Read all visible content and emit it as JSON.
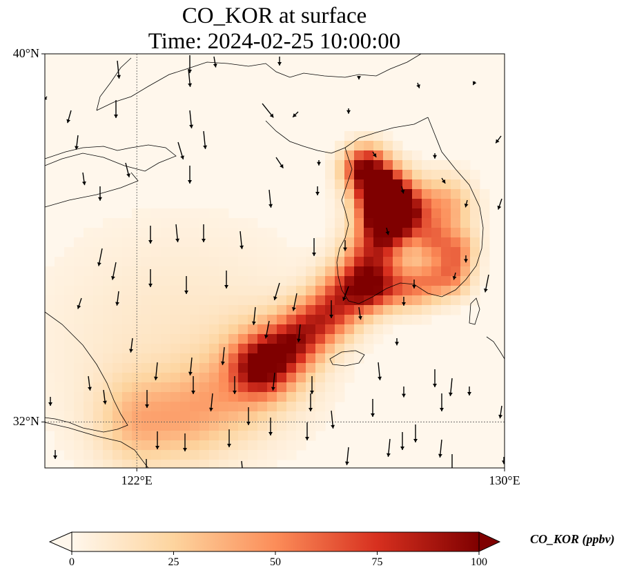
{
  "figure": {
    "title_line1": "CO_KOR at surface",
    "title_line2": "Time: 2024-02-25 10:00:00"
  },
  "map": {
    "lon_range": [
      120,
      130
    ],
    "lat_range": [
      31,
      40
    ],
    "lat_ticks": [
      {
        "value": 40,
        "label": "40°N"
      },
      {
        "value": 32,
        "label": "32°N"
      }
    ],
    "lon_ticks": [
      {
        "value": 122,
        "label": "122°E"
      },
      {
        "value": 130,
        "label": "130°E"
      }
    ],
    "gridlines": [
      {
        "type": "lon",
        "value": 122
      },
      {
        "type": "lat",
        "value": 32
      }
    ],
    "colormap": "OrRd",
    "coastline_color": "#000000"
  },
  "colorbar": {
    "label": "CO_KOR (ppbv)",
    "min": 0,
    "max": 100,
    "ticks": [
      {
        "value": 0,
        "label": "0"
      },
      {
        "value": 25,
        "label": "25"
      },
      {
        "value": 50,
        "label": "50"
      },
      {
        "value": 75,
        "label": "75"
      },
      {
        "value": 100,
        "label": "100"
      }
    ],
    "extend": "both"
  }
}
